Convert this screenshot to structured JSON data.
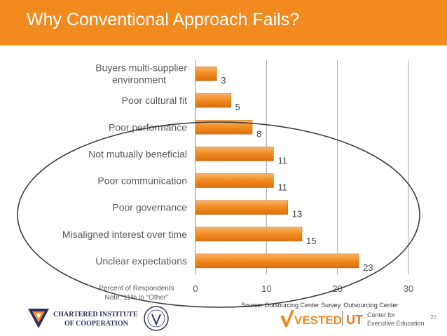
{
  "header": {
    "title": "Why Conventional Approach Fails?"
  },
  "chart_data": {
    "type": "bar",
    "orientation": "horizontal",
    "categories": [
      "Buyers multi-supplier environment",
      "Poor cultural fit",
      "Poor performance",
      "Not mutually beneficial",
      "Poor communication",
      "Poor governance",
      "Misaligned interest over time",
      "Unclear expectations"
    ],
    "category_lines": [
      [
        "Buyers multi-supplier",
        "environment"
      ],
      [
        "Poor cultural fit"
      ],
      [
        "Poor performance"
      ],
      [
        "Not mutually beneficial"
      ],
      [
        "Poor communication"
      ],
      [
        "Poor governance"
      ],
      [
        "Misaligned interest over time"
      ],
      [
        "Unclear expectations"
      ]
    ],
    "values": [
      3,
      5,
      8,
      11,
      11,
      13,
      15,
      23
    ],
    "xlim": [
      0,
      30
    ],
    "xticks": [
      0,
      10,
      20,
      30
    ],
    "xtick_labels": [
      "0",
      "10",
      "20",
      "30"
    ],
    "grid": true,
    "bar_color": "#f18a1f",
    "annotation": "ellipse around bottom six categories"
  },
  "notes": {
    "line1": "Percent of Respondents",
    "line2": "Note: 11% in “Other”"
  },
  "source": "Source:  Outsourcing Center Survey.  Outsourcing Center",
  "page_number": "20",
  "logos": {
    "cic_line1": "CHARTERED INSTITUTE",
    "cic_line2": "OF COOPERATION",
    "vested": "VESTED",
    "ut": "UT",
    "ut_line1": "Center for",
    "ut_line2": "Executive Education"
  },
  "colors": {
    "accent": "#f18a1f",
    "ut_orange": "#e87722",
    "cic_navy": "#2c2f5e"
  }
}
